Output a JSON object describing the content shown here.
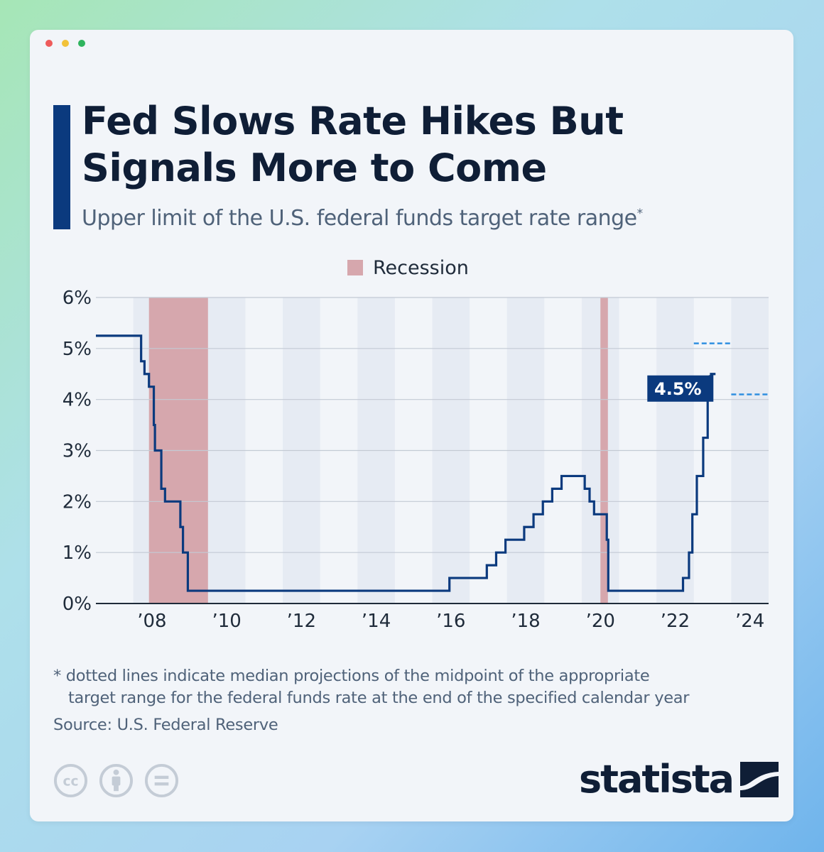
{
  "window": {
    "dot_colors": [
      "#ee5b5b",
      "#f2c23a",
      "#2fb45e"
    ]
  },
  "header": {
    "title": "Fed Slows Rate Hikes But Signals More to Come",
    "subtitle": "Upper limit of the U.S. federal funds target rate range",
    "subtitle_mark": "*"
  },
  "legend": {
    "recession_label": "Recession"
  },
  "chart_data": {
    "type": "line",
    "x_unit": "year",
    "y_unit": "%",
    "xlim": [
      2006.5,
      2024.5
    ],
    "ylim": [
      0,
      6
    ],
    "y_ticks": [
      0,
      1,
      2,
      3,
      4,
      5,
      6
    ],
    "y_tick_labels": [
      "0%",
      "1%",
      "2%",
      "3%",
      "4%",
      "5%",
      "6%"
    ],
    "x_ticks": [
      2008,
      2010,
      2012,
      2014,
      2016,
      2018,
      2020,
      2022,
      2024
    ],
    "x_tick_labels": [
      "’08",
      "’10",
      "’12",
      "’14",
      "’16",
      "’18",
      "’20",
      "’22",
      "’24"
    ],
    "grid": true,
    "legend_position": "top-center",
    "recessions": [
      [
        2007.92,
        2009.5
      ],
      [
        2020.0,
        2020.2
      ]
    ],
    "series": [
      {
        "color": "#0b3a7e",
        "step": true,
        "points": [
          [
            2006.5,
            5.25
          ],
          [
            2007.71,
            4.75
          ],
          [
            2007.8,
            4.5
          ],
          [
            2007.92,
            4.25
          ],
          [
            2008.05,
            3.5
          ],
          [
            2008.08,
            3.0
          ],
          [
            2008.25,
            2.25
          ],
          [
            2008.35,
            2.0
          ],
          [
            2008.76,
            1.5
          ],
          [
            2008.83,
            1.0
          ],
          [
            2008.96,
            0.25
          ],
          [
            2015.96,
            0.5
          ],
          [
            2016.96,
            0.75
          ],
          [
            2017.21,
            1.0
          ],
          [
            2017.46,
            1.25
          ],
          [
            2017.96,
            1.5
          ],
          [
            2018.21,
            1.75
          ],
          [
            2018.46,
            2.0
          ],
          [
            2018.71,
            2.25
          ],
          [
            2018.96,
            2.5
          ],
          [
            2019.58,
            2.25
          ],
          [
            2019.71,
            2.0
          ],
          [
            2019.83,
            1.75
          ],
          [
            2020.17,
            1.25
          ],
          [
            2020.21,
            0.25
          ],
          [
            2022.21,
            0.5
          ],
          [
            2022.37,
            1.0
          ],
          [
            2022.46,
            1.75
          ],
          [
            2022.58,
            2.5
          ],
          [
            2022.75,
            3.25
          ],
          [
            2022.87,
            4.0
          ],
          [
            2022.96,
            4.5
          ],
          [
            2023.08,
            4.5
          ]
        ]
      }
    ],
    "projections": [
      {
        "year": 2023,
        "value": 5.1
      },
      {
        "year": 2024,
        "value": 4.1
      }
    ],
    "projection_color": "#2f8fe0",
    "callout": {
      "x": 2023.08,
      "y": 4.5,
      "label": "4.5%"
    }
  },
  "footer": {
    "footnote_line1": "* dotted lines indicate median projections of the midpoint of the appropriate",
    "footnote_line2": "target range for the federal funds rate at the end of the specified calendar year",
    "source": "Source: U.S. Federal Reserve",
    "license_icons": [
      "creative-commons-icon",
      "attribution-icon",
      "no-derivatives-icon"
    ],
    "brand": "statista"
  }
}
